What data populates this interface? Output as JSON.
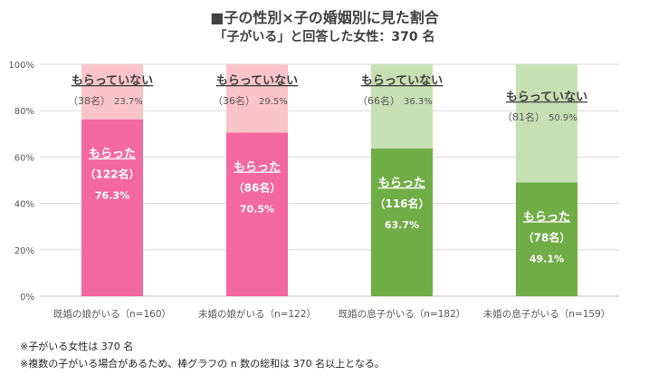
{
  "title": "■子の性別×子の婚姻別に見た割合",
  "subtitle": "「子がいる」と回答した女性：370 名",
  "chart_data": {
    "type": "bar",
    "stacked": true,
    "ylim": [
      0,
      100
    ],
    "yticks": [
      "0%",
      "20%",
      "40%",
      "60%",
      "80%",
      "100%"
    ],
    "categories": [
      "既婚の娘がいる（n=160）",
      "未婚の娘がいる（n=122）",
      "既婚の息子がいる（n=182）",
      "未婚の息子がいる（n=159）"
    ],
    "series": [
      {
        "name": "もらった",
        "values": [
          76.3,
          70.5,
          63.7,
          49.1
        ],
        "counts": [
          "（122名）",
          "（86名）",
          "（116名）",
          "（78名）"
        ],
        "pct_labels": [
          "76.3%",
          "70.5%",
          "63.7%",
          "49.1%"
        ],
        "colors": [
          "#f3689f",
          "#f3689f",
          "#70ad47",
          "#70ad47"
        ]
      },
      {
        "name": "もらっていない",
        "values": [
          23.7,
          29.5,
          36.3,
          50.9
        ],
        "counts": [
          "（38名）",
          "（36名）",
          "（66名）",
          "（81名）"
        ],
        "pct_labels": [
          "23.7%",
          "29.5%",
          "36.3%",
          "50.9%"
        ],
        "colors": [
          "#fbc4c8",
          "#fbc4c8",
          "#c6e0b4",
          "#c6e0b4"
        ]
      }
    ]
  },
  "notes": [
    "※子がいる女性は 370 名",
    "※複数の子がいる場合があるため、棒グラフの n 数の総和は 370 名以上となる。"
  ]
}
